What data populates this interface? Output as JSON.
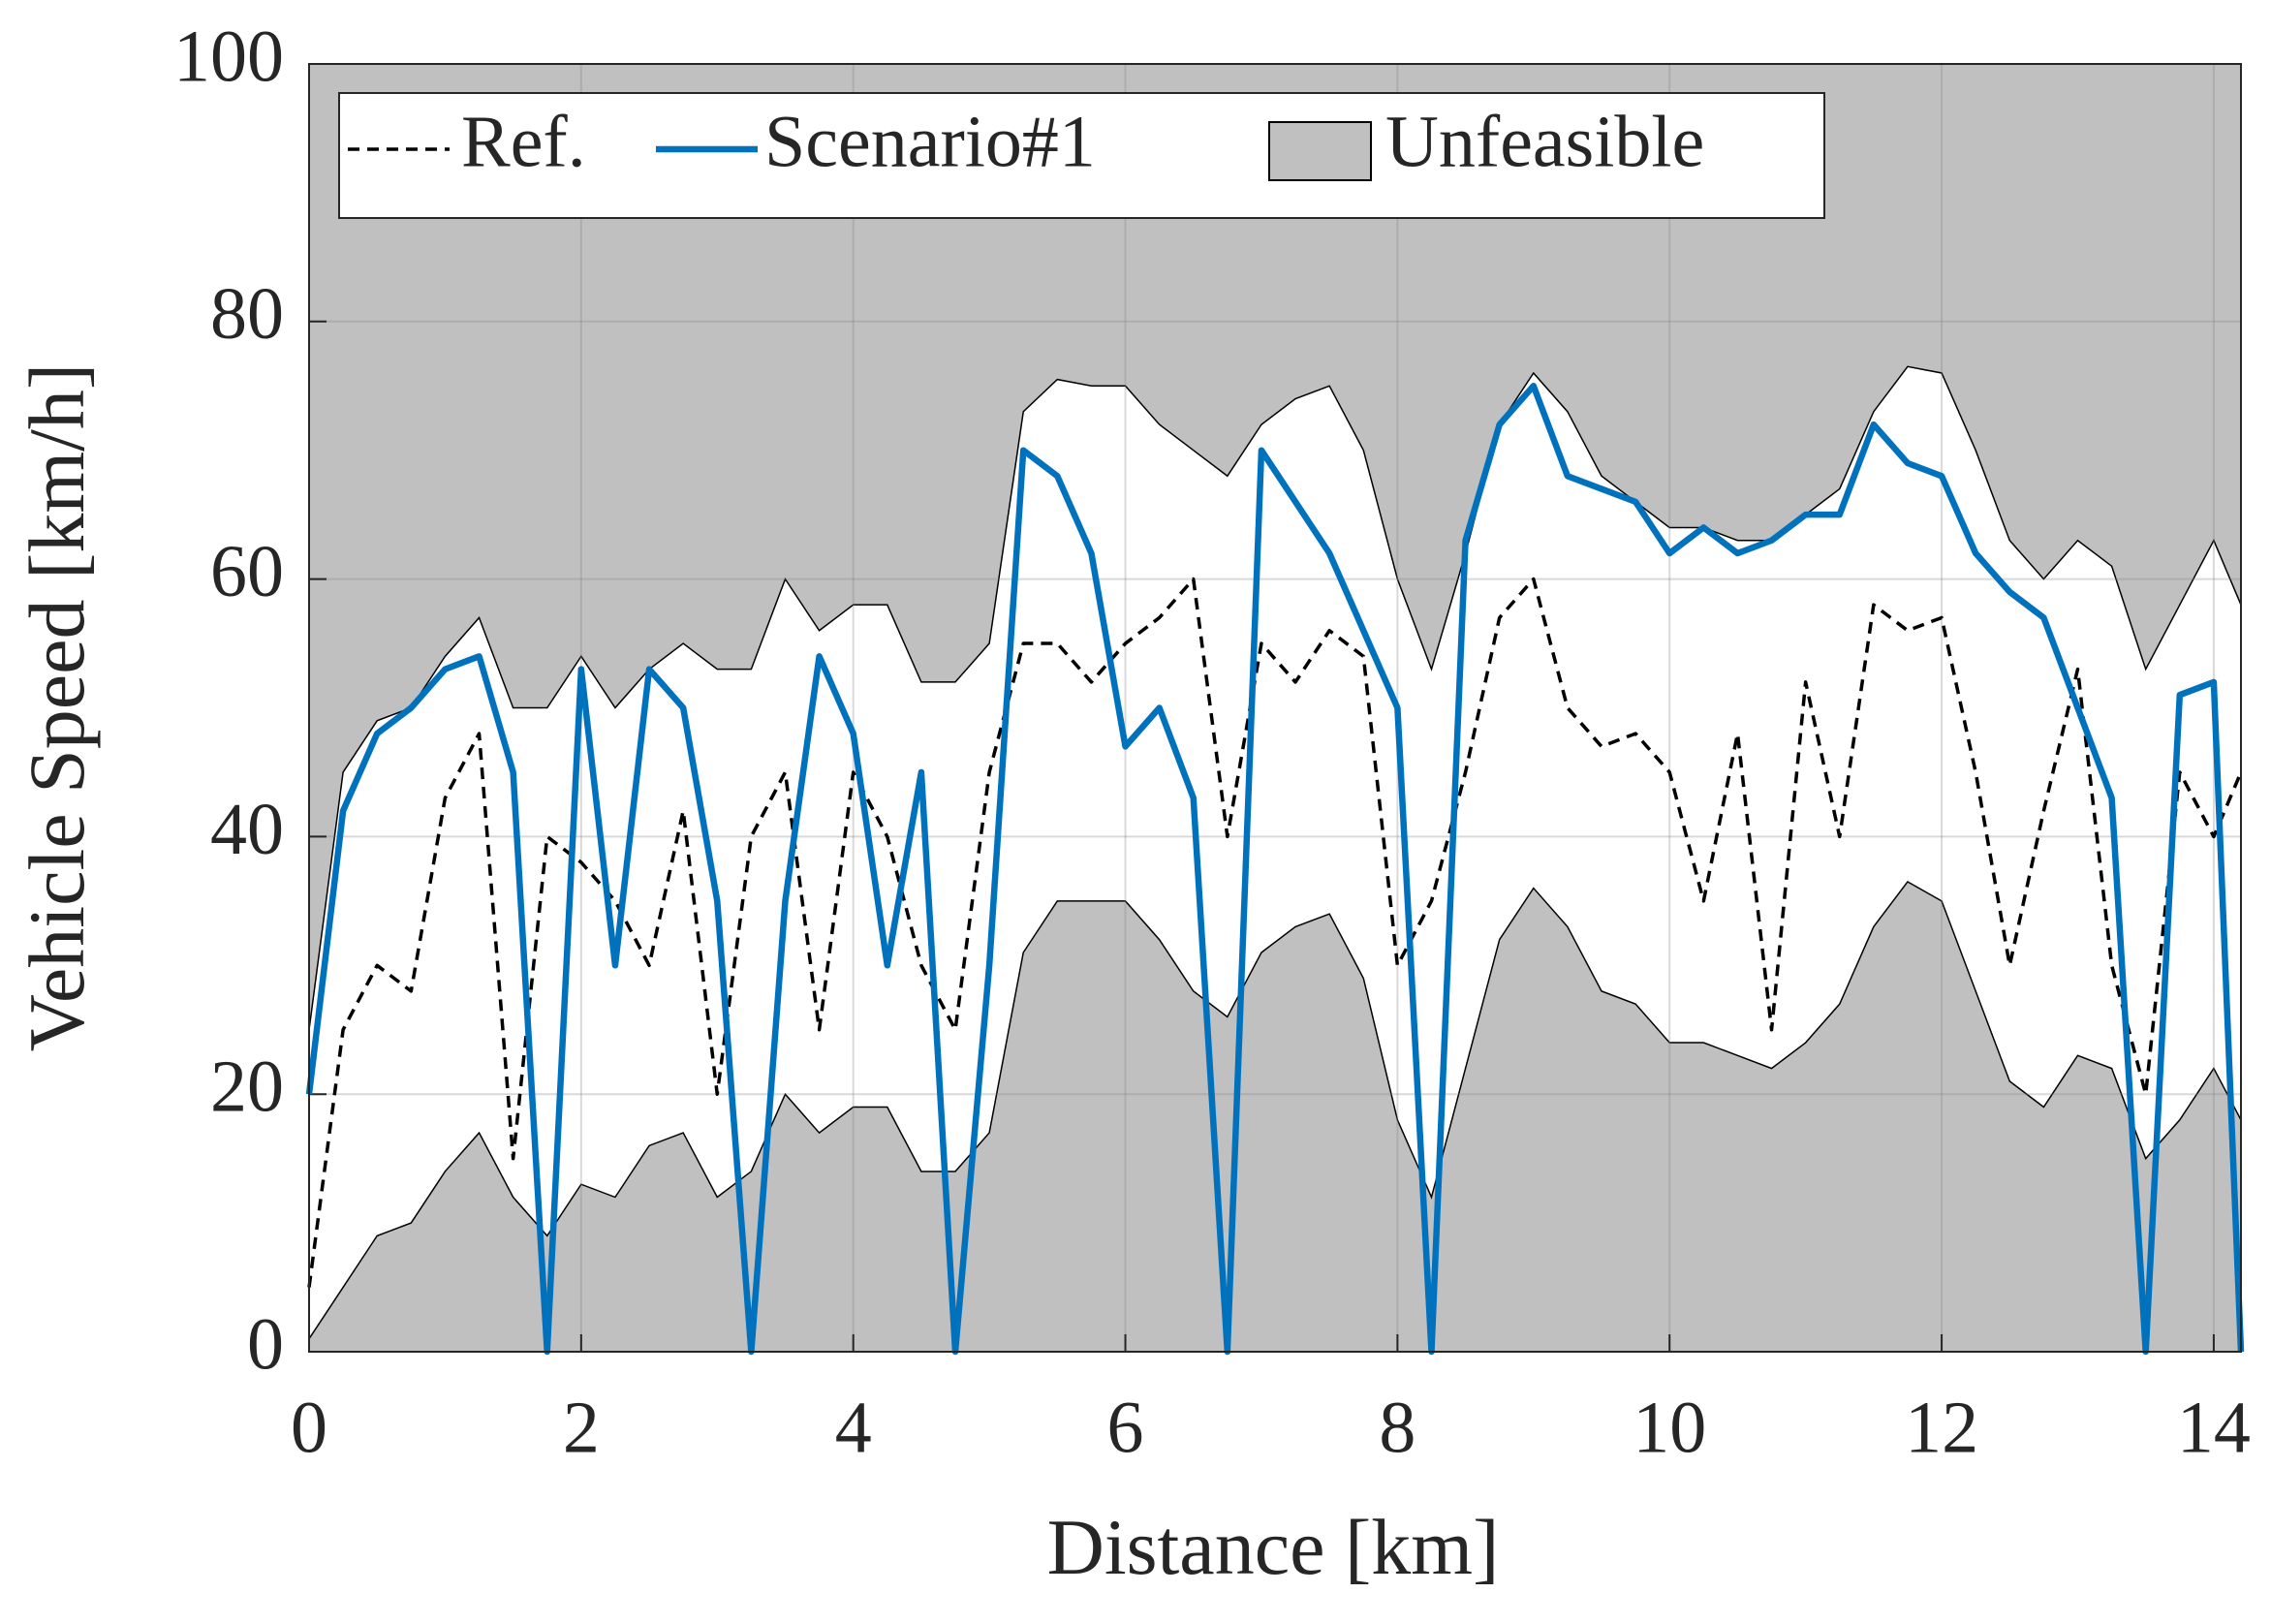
{
  "chart_data": {
    "type": "line",
    "xlabel": "Distance [km]",
    "ylabel": "Vehicle Speed [km/h]",
    "x": [
      0,
      0.25,
      0.5,
      0.75,
      1.0,
      1.25,
      1.5,
      1.75,
      2.0,
      2.25,
      2.5,
      2.75,
      3.0,
      3.25,
      3.5,
      3.75,
      4.0,
      4.25,
      4.5,
      4.75,
      5.0,
      5.25,
      5.5,
      5.75,
      6.0,
      6.25,
      6.5,
      6.75,
      7.0,
      7.25,
      7.5,
      7.75,
      8.0,
      8.25,
      8.5,
      8.75,
      9.0,
      9.25,
      9.5,
      9.75,
      10.0,
      10.25,
      10.5,
      10.75,
      11.0,
      11.25,
      11.5,
      11.75,
      12.0,
      12.25,
      12.5,
      12.75,
      13.0,
      13.25,
      13.5,
      13.75,
      14.0,
      14.2
    ],
    "series": [
      {
        "name": "Ref.",
        "color": "#000000",
        "style": "dashed",
        "values": [
          5,
          25,
          30,
          28,
          43,
          48,
          15,
          40,
          38,
          35,
          30,
          42,
          20,
          40,
          45,
          25,
          45,
          40,
          30,
          25,
          45,
          55,
          55,
          52,
          55,
          57,
          60,
          40,
          55,
          52,
          56,
          54,
          30,
          35,
          45,
          57,
          60,
          50,
          47,
          48,
          45,
          35,
          48,
          25,
          52,
          40,
          58,
          56,
          57,
          45,
          30,
          42,
          53,
          30,
          20,
          45,
          40,
          45
        ]
      },
      {
        "name": "Scenario#1",
        "color": "#0072bd",
        "style": "solid",
        "values": [
          20,
          42,
          48,
          50,
          53,
          54,
          45,
          0,
          53,
          30,
          53,
          50,
          35,
          0,
          35,
          54,
          48,
          30,
          45,
          0,
          30,
          70,
          68,
          62,
          47,
          50,
          43,
          0,
          70,
          66,
          62,
          56,
          50,
          0,
          63,
          72,
          75,
          68,
          67,
          66,
          62,
          64,
          62,
          63,
          65,
          65,
          72,
          69,
          68,
          62,
          59,
          57,
          50,
          43,
          0,
          51,
          52,
          0
        ]
      }
    ],
    "unfeasible": {
      "name": "Unfeasible",
      "color": "#c0c0c0",
      "upper": [
        25,
        45,
        49,
        50,
        54,
        57,
        50,
        50,
        54,
        50,
        53,
        55,
        53,
        53,
        60,
        56,
        58,
        58,
        52,
        52,
        55,
        73,
        75.5,
        75,
        75,
        72,
        70,
        68,
        72,
        74,
        75,
        70,
        60,
        53,
        62,
        72,
        76,
        73,
        68,
        66,
        64,
        64,
        63,
        63,
        65,
        67,
        73,
        76.5,
        76,
        70,
        63,
        60,
        63,
        61,
        53,
        58,
        63,
        58
      ],
      "lower": [
        1,
        5,
        9,
        10,
        14,
        17,
        12,
        9,
        13,
        12,
        16,
        17,
        12,
        14,
        20,
        17,
        19,
        19,
        14,
        14,
        17,
        31,
        35,
        35,
        35,
        32,
        28,
        26,
        31,
        33,
        34,
        29,
        18,
        12,
        22,
        32,
        36,
        33,
        28,
        27,
        24,
        24,
        23,
        22,
        24,
        27,
        33,
        36.5,
        35,
        28,
        21,
        19,
        23,
        22,
        15,
        18,
        22,
        18
      ]
    },
    "xlim": [
      0,
      14.2
    ],
    "ylim": [
      0,
      100
    ],
    "xticks": [
      0,
      2,
      4,
      6,
      8,
      10,
      12,
      14
    ],
    "yticks": [
      0,
      20,
      40,
      60,
      80,
      100
    ],
    "grid": true,
    "legend": "top-left"
  }
}
